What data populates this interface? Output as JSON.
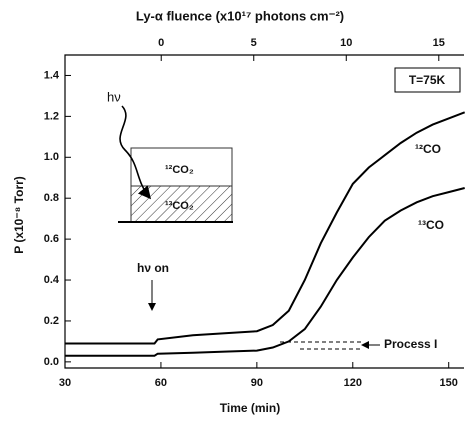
{
  "chart_data": {
    "type": "line",
    "x_label": "Time (min)",
    "y_label": "P (x10⁻⁸ Torr)",
    "x2_label": "Ly-α fluence (x10¹⁷ photons cm⁻²)",
    "x": [
      30,
      40,
      50,
      58,
      59,
      70,
      80,
      90,
      95,
      100,
      105,
      110,
      115,
      120,
      125,
      130,
      135,
      140,
      145,
      150,
      155
    ],
    "series": [
      {
        "name": "¹²CO",
        "color": "#000000",
        "values": [
          0.09,
          0.09,
          0.09,
          0.09,
          0.11,
          0.13,
          0.14,
          0.15,
          0.18,
          0.25,
          0.4,
          0.58,
          0.73,
          0.87,
          0.95,
          1.01,
          1.07,
          1.12,
          1.16,
          1.19,
          1.22
        ]
      },
      {
        "name": "¹³CO",
        "color": "#000000",
        "values": [
          0.03,
          0.03,
          0.03,
          0.03,
          0.04,
          0.045,
          0.05,
          0.055,
          0.07,
          0.1,
          0.16,
          0.27,
          0.4,
          0.51,
          0.61,
          0.69,
          0.74,
          0.78,
          0.81,
          0.83,
          0.85
        ]
      }
    ],
    "xlim": [
      30,
      155
    ],
    "xticks": [
      30,
      60,
      90,
      120,
      150
    ],
    "x2lim": [
      -5.2,
      16.4
    ],
    "x2ticks": [
      0,
      5,
      10,
      15
    ],
    "ylim": [
      -0.03,
      1.5
    ],
    "yticks": [
      {
        "value": 0,
        "label": "0.0"
      },
      0.2,
      0.4,
      0.6,
      0.8,
      {
        "value": 1,
        "label": "1.0"
      },
      1.2,
      1.4
    ],
    "annotations": [
      "T=75K",
      "hν",
      "¹²CO₂",
      "¹³CO₂",
      "hν on",
      "Process I"
    ]
  }
}
